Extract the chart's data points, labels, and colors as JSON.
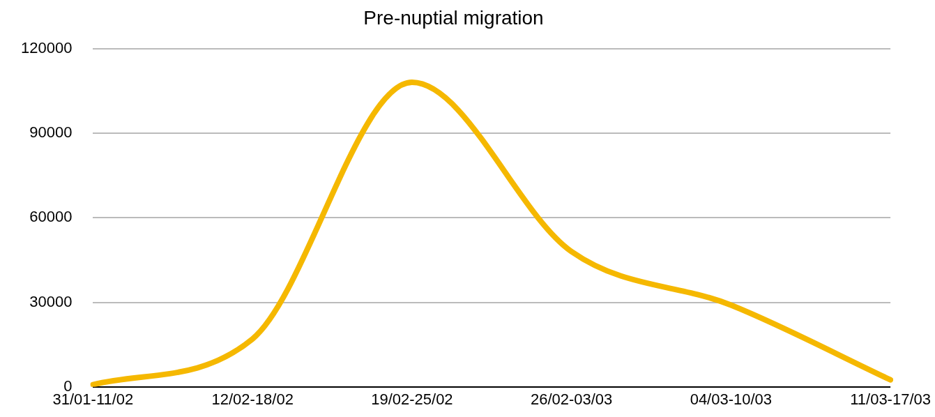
{
  "chart_data": {
    "type": "line",
    "title": "Pre-nuptial migration",
    "categories": [
      "31/01-11/02",
      "12/02-18/02",
      "19/02-25/02",
      "26/02-03/03",
      "04/03-10/03",
      "11/03-17/03"
    ],
    "series": [
      {
        "color": "#f5b800",
        "values": [
          800,
          17000,
          108000,
          48000,
          29000,
          2500
        ]
      }
    ],
    "ylim": [
      0,
      120000
    ],
    "yticks": [
      0,
      30000,
      60000,
      90000,
      120000
    ],
    "grid": "y",
    "legend": false,
    "marker": "none",
    "line_style": "solid"
  }
}
